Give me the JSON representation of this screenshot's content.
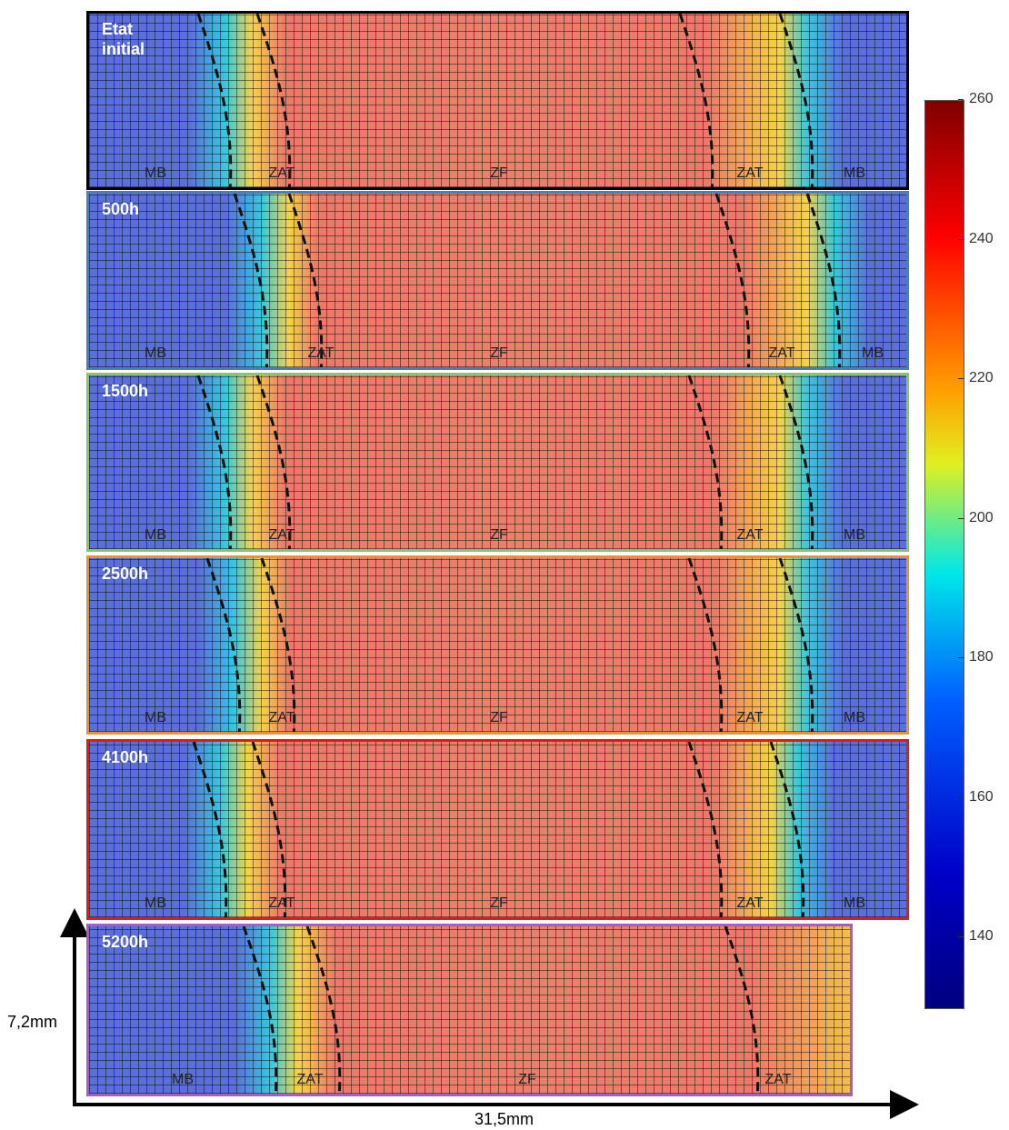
{
  "panels": [
    {
      "label": "Etat initial",
      "color": "#000000",
      "zones": [
        "MB",
        "ZAT",
        "ZF",
        "ZAT",
        "MB"
      ]
    },
    {
      "label": "500h",
      "color": "#4a7ebb",
      "zones": [
        "MB",
        "ZAT",
        "ZF",
        "ZAT",
        "MB"
      ]
    },
    {
      "label": "1500h",
      "color": "#8dc26f",
      "zones": [
        "MB",
        "ZAT",
        "ZF",
        "ZAT",
        "MB"
      ]
    },
    {
      "label": "2500h",
      "color": "#e8913a",
      "zones": [
        "MB",
        "ZAT",
        "ZF",
        "ZAT",
        "MB"
      ]
    },
    {
      "label": "4100h",
      "color": "#e41a1a",
      "zones": [
        "MB",
        "ZAT",
        "ZF",
        "ZAT",
        "MB"
      ]
    },
    {
      "label": "5200h",
      "color": "#a25fc4",
      "zones": [
        "MB",
        "ZAT",
        "ZF",
        "ZAT"
      ]
    }
  ],
  "colorbar": {
    "ylim": [
      130,
      260
    ],
    "yticks": [
      140,
      160,
      180,
      200,
      220,
      240,
      260
    ]
  },
  "axes": {
    "y_label": "7,2mm",
    "x_label": "31,5mm"
  }
}
